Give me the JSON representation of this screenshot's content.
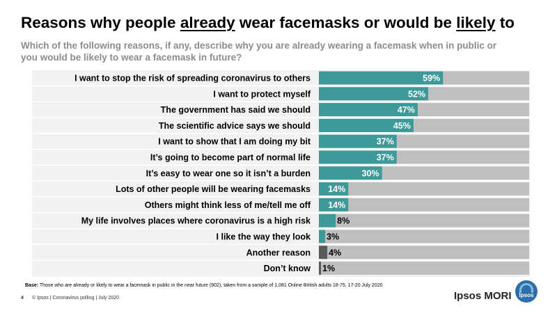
{
  "title": {
    "part1": "Reasons why people ",
    "part2": "already",
    "part3": " wear facemasks or would be ",
    "part4": "likely",
    "part5": " to"
  },
  "subtitle": "Which of the following reasons, if any, describe why you are already wearing a facemask when in public or you would be likely to wear a facemask in future?",
  "chart_data": {
    "type": "bar",
    "orientation": "horizontal",
    "categories": [
      "I want to stop the risk of spreading coronavirus to others",
      "I want to protect myself",
      "The government has said we should",
      "The scientific advice says we should",
      "I want to show that I am doing my bit",
      "It’s going to become part of normal life",
      "It’s easy to wear one so it isn’t a burden",
      "Lots of other people will be wearing facemasks",
      "Others might think less of me/tell me off",
      "My life involves places where coronavirus is a high risk",
      "I like the way they look",
      "Another reason",
      "Don’t know"
    ],
    "values": [
      59,
      52,
      47,
      45,
      37,
      37,
      30,
      14,
      14,
      8,
      3,
      4,
      1
    ],
    "labels": [
      "59%",
      "52%",
      "47%",
      "45%",
      "37%",
      "37%",
      "30%",
      "14%",
      "14%",
      "8%",
      "3%",
      "4%",
      "1%"
    ],
    "bar_colors": [
      "#3d9a98",
      "#3d9a98",
      "#3d9a98",
      "#3d9a98",
      "#3d9a98",
      "#3d9a98",
      "#3d9a98",
      "#3d9a98",
      "#3d9a98",
      "#3d9a98",
      "#3d9a98",
      "#595959",
      "#595959"
    ],
    "background_bar_color": "#bfbfbf",
    "xlim": [
      0,
      100
    ]
  },
  "footnote": {
    "label": "Base:",
    "text": " Those who are already or likely to wear a facemask in public in the near future (902), taken from a sample of 1,081 Online British adults 18-75, 17-20 July 2020"
  },
  "footer": {
    "page": "4",
    "text": "© Ipsos | Coronavirus polling | July 2020"
  },
  "brand": "Ipsos MORI",
  "logo_text": "Ipsos"
}
